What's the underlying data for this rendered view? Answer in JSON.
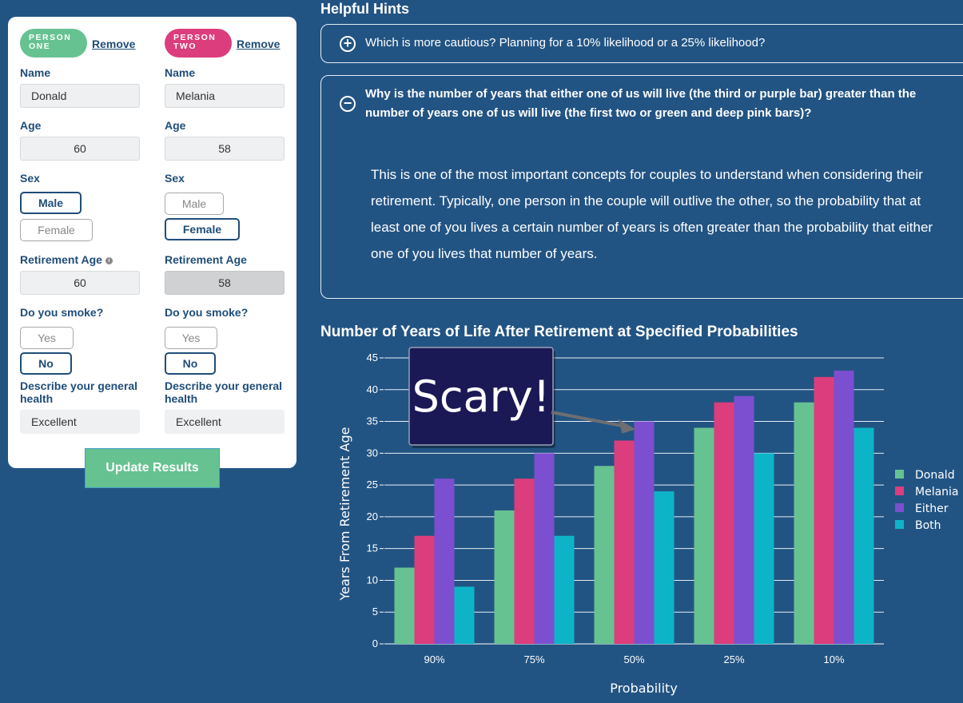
{
  "people": [
    {
      "badge": "PERSON ONE",
      "remove_label": "Remove",
      "name_label": "Name",
      "name_value": "Donald",
      "age_label": "Age",
      "age_value": "60",
      "sex_label": "Sex",
      "sex_options": [
        "Male",
        "Female"
      ],
      "sex_selected": "Male",
      "retire_label": "Retirement Age",
      "retire_info_icon": "info-icon",
      "retire_value": "60",
      "smoke_label": "Do you smoke?",
      "smoke_options": [
        "Yes",
        "No"
      ],
      "smoke_selected": "No",
      "health_label": "Describe your general health",
      "health_value": "Excellent",
      "badge_color": "#66c291"
    },
    {
      "badge": "PERSON TWO",
      "remove_label": "Remove",
      "name_label": "Name",
      "name_value": "Melania",
      "age_label": "Age",
      "age_value": "58",
      "sex_label": "Sex",
      "sex_options": [
        "Male",
        "Female"
      ],
      "sex_selected": "Female",
      "retire_label": "Retirement Age",
      "retire_value": "58",
      "smoke_label": "Do you smoke?",
      "smoke_options": [
        "Yes",
        "No"
      ],
      "smoke_selected": "No",
      "health_label": "Describe your general health",
      "health_value": "Excellent",
      "badge_color": "#dc3d7c"
    }
  ],
  "update_button": "Update Results",
  "hints": {
    "title": "Helpful Hints",
    "items": [
      {
        "icon": "plus-circle-icon",
        "question": "Which is more cautious? Planning for a 10% likelihood or a 25% likelihood?",
        "expanded": false
      },
      {
        "icon": "minus-circle-icon",
        "question": "Why is the number of years that either one of us will live (the third or purple bar) greater than the number of years one of us will live (the first two or green and deep pink bars)?",
        "answer": "This is one of the most important concepts for couples to understand when considering their retirement. Typically, one person in the couple will outlive the other, so the probability that at least one of you lives a certain number of years is often greater than the probability that either one of you lives that number of years.",
        "expanded": true
      }
    ]
  },
  "chart_title": "Number of Years of Life After Retirement at Specified Probabilities",
  "chart_data": {
    "type": "bar",
    "title": "Number of Years of Life After Retirement at Specified Probabilities",
    "xlabel": "Probability",
    "ylabel": "Years From Retirement Age",
    "categories": [
      "90%",
      "75%",
      "50%",
      "25%",
      "10%"
    ],
    "series": [
      {
        "name": "Donald",
        "values": [
          12,
          21,
          28,
          34,
          38
        ],
        "color": "#66c291"
      },
      {
        "name": "Melania",
        "values": [
          17,
          26,
          32,
          38,
          42
        ],
        "color": "#dc3d7c"
      },
      {
        "name": "Either",
        "values": [
          26,
          30,
          35,
          39,
          43
        ],
        "color": "#7b4fcf"
      },
      {
        "name": "Both",
        "values": [
          9,
          17,
          24,
          30,
          34
        ],
        "color": "#0db4c8"
      }
    ],
    "ylim": [
      0,
      45
    ],
    "yticks": [
      0,
      5,
      10,
      15,
      20,
      25,
      30,
      35,
      40,
      45
    ],
    "grid": true,
    "legend_position": "right",
    "annotation": {
      "text": "Scary!",
      "points_to": {
        "category": "50%",
        "series": "Either"
      }
    }
  },
  "colors": {
    "background": "#225483",
    "card": "#ffffff",
    "label_text": "#1f4d78",
    "button_green": "#66c291"
  }
}
